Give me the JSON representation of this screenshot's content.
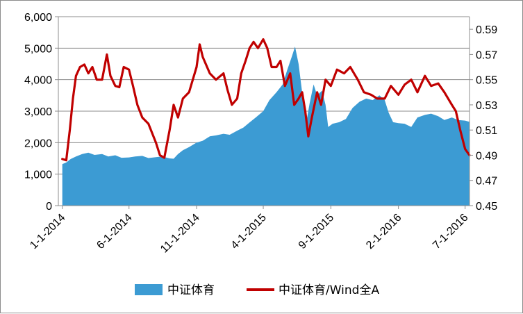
{
  "chart_data": {
    "type": "area",
    "title": "",
    "xlabel": "",
    "ylabel": "",
    "legend_placement": "bottom",
    "grid": {
      "horizontal": true,
      "vertical": false
    },
    "x_range": [
      "2013-12-23",
      "2016-07-11"
    ],
    "x_tick_labels": [
      "1-1-2014",
      "6-1-2014",
      "11-1-2014",
      "4-1-2015",
      "9-1-2015",
      "2-1-2016",
      "7-1-2016"
    ],
    "x_tick_dates": [
      "2014-01-01",
      "2014-06-01",
      "2014-11-01",
      "2015-04-01",
      "2015-09-01",
      "2016-02-01",
      "2016-07-01"
    ],
    "y_left": {
      "min": 0,
      "max": 6000,
      "step": 1000,
      "tick_labels": [
        "0",
        "1,000",
        "2,000",
        "3,000",
        "4,000",
        "5,000",
        "6,000"
      ]
    },
    "y_right": {
      "min": 0.45,
      "max": 0.6,
      "step": 0.02,
      "tick_labels": [
        "0.45",
        "0.47",
        "0.49",
        "0.51",
        "0.53",
        "0.55",
        "0.57",
        "0.59"
      ]
    },
    "series": [
      {
        "name": "中证体育",
        "type": "area",
        "axis": "left",
        "color": "#3c9bd3",
        "points": [
          [
            "2014-01-01",
            1320
          ],
          [
            "2014-01-10",
            1370
          ],
          [
            "2014-01-20",
            1480
          ],
          [
            "2014-02-01",
            1560
          ],
          [
            "2014-02-15",
            1640
          ],
          [
            "2014-03-01",
            1680
          ],
          [
            "2014-03-15",
            1610
          ],
          [
            "2014-04-01",
            1640
          ],
          [
            "2014-04-15",
            1560
          ],
          [
            "2014-05-01",
            1600
          ],
          [
            "2014-05-15",
            1520
          ],
          [
            "2014-06-01",
            1530
          ],
          [
            "2014-06-15",
            1560
          ],
          [
            "2014-07-01",
            1580
          ],
          [
            "2014-07-15",
            1510
          ],
          [
            "2014-08-01",
            1540
          ],
          [
            "2014-08-15",
            1560
          ],
          [
            "2014-09-01",
            1500
          ],
          [
            "2014-09-10",
            1490
          ],
          [
            "2014-09-20",
            1640
          ],
          [
            "2014-10-01",
            1760
          ],
          [
            "2014-10-15",
            1860
          ],
          [
            "2014-11-01",
            2000
          ],
          [
            "2014-11-15",
            2060
          ],
          [
            "2014-12-01",
            2200
          ],
          [
            "2014-12-15",
            2230
          ],
          [
            "2015-01-01",
            2280
          ],
          [
            "2015-01-15",
            2250
          ],
          [
            "2015-02-01",
            2380
          ],
          [
            "2015-02-15",
            2480
          ],
          [
            "2015-03-01",
            2640
          ],
          [
            "2015-03-15",
            2800
          ],
          [
            "2015-04-01",
            3000
          ],
          [
            "2015-04-15",
            3350
          ],
          [
            "2015-05-01",
            3600
          ],
          [
            "2015-05-15",
            3850
          ],
          [
            "2015-05-25",
            4300
          ],
          [
            "2015-06-05",
            4750
          ],
          [
            "2015-06-12",
            5050
          ],
          [
            "2015-06-20",
            4500
          ],
          [
            "2015-06-28",
            3600
          ],
          [
            "2015-07-08",
            2700
          ],
          [
            "2015-07-15",
            3250
          ],
          [
            "2015-07-24",
            3850
          ],
          [
            "2015-08-01",
            3500
          ],
          [
            "2015-08-12",
            3650
          ],
          [
            "2015-08-20",
            3200
          ],
          [
            "2015-08-26",
            2500
          ],
          [
            "2015-09-05",
            2600
          ],
          [
            "2015-09-20",
            2650
          ],
          [
            "2015-10-05",
            2750
          ],
          [
            "2015-10-20",
            3100
          ],
          [
            "2015-11-05",
            3300
          ],
          [
            "2015-11-20",
            3400
          ],
          [
            "2015-12-05",
            3350
          ],
          [
            "2015-12-20",
            3500
          ],
          [
            "2016-01-01",
            3350
          ],
          [
            "2016-01-10",
            2950
          ],
          [
            "2016-01-20",
            2650
          ],
          [
            "2016-02-01",
            2620
          ],
          [
            "2016-02-15",
            2600
          ],
          [
            "2016-03-01",
            2500
          ],
          [
            "2016-03-15",
            2800
          ],
          [
            "2016-04-01",
            2880
          ],
          [
            "2016-04-15",
            2920
          ],
          [
            "2016-05-01",
            2840
          ],
          [
            "2016-05-15",
            2720
          ],
          [
            "2016-06-01",
            2800
          ],
          [
            "2016-06-15",
            2720
          ],
          [
            "2016-07-01",
            2700
          ],
          [
            "2016-07-11",
            2660
          ]
        ]
      },
      {
        "name": "中证体育/Wind全A",
        "type": "line",
        "axis": "right",
        "color": "#c00000",
        "points": [
          [
            "2014-01-01",
            0.487
          ],
          [
            "2014-01-10",
            0.486
          ],
          [
            "2014-01-18",
            0.51
          ],
          [
            "2014-01-25",
            0.535
          ],
          [
            "2014-02-01",
            0.553
          ],
          [
            "2014-02-10",
            0.56
          ],
          [
            "2014-02-20",
            0.562
          ],
          [
            "2014-03-01",
            0.555
          ],
          [
            "2014-03-10",
            0.56
          ],
          [
            "2014-03-20",
            0.55
          ],
          [
            "2014-04-01",
            0.55
          ],
          [
            "2014-04-12",
            0.57
          ],
          [
            "2014-04-20",
            0.553
          ],
          [
            "2014-05-01",
            0.545
          ],
          [
            "2014-05-10",
            0.544
          ],
          [
            "2014-05-20",
            0.56
          ],
          [
            "2014-06-01",
            0.558
          ],
          [
            "2014-06-10",
            0.545
          ],
          [
            "2014-06-20",
            0.53
          ],
          [
            "2014-07-01",
            0.52
          ],
          [
            "2014-07-15",
            0.515
          ],
          [
            "2014-08-01",
            0.5
          ],
          [
            "2014-08-10",
            0.49
          ],
          [
            "2014-08-20",
            0.488
          ],
          [
            "2014-09-01",
            0.51
          ],
          [
            "2014-09-10",
            0.53
          ],
          [
            "2014-09-20",
            0.52
          ],
          [
            "2014-10-01",
            0.535
          ],
          [
            "2014-10-15",
            0.54
          ],
          [
            "2014-11-01",
            0.56
          ],
          [
            "2014-11-08",
            0.578
          ],
          [
            "2014-11-15",
            0.568
          ],
          [
            "2014-12-01",
            0.555
          ],
          [
            "2014-12-15",
            0.55
          ],
          [
            "2015-01-01",
            0.555
          ],
          [
            "2015-01-10",
            0.542
          ],
          [
            "2015-01-20",
            0.53
          ],
          [
            "2015-02-01",
            0.535
          ],
          [
            "2015-02-10",
            0.555
          ],
          [
            "2015-02-20",
            0.565
          ],
          [
            "2015-03-01",
            0.575
          ],
          [
            "2015-03-10",
            0.58
          ],
          [
            "2015-03-20",
            0.575
          ],
          [
            "2015-04-01",
            0.582
          ],
          [
            "2015-04-10",
            0.575
          ],
          [
            "2015-04-20",
            0.56
          ],
          [
            "2015-05-01",
            0.56
          ],
          [
            "2015-05-10",
            0.565
          ],
          [
            "2015-05-20",
            0.545
          ],
          [
            "2015-06-01",
            0.555
          ],
          [
            "2015-06-10",
            0.53
          ],
          [
            "2015-06-20",
            0.535
          ],
          [
            "2015-06-28",
            0.54
          ],
          [
            "2015-07-05",
            0.525
          ],
          [
            "2015-07-12",
            0.505
          ],
          [
            "2015-07-20",
            0.52
          ],
          [
            "2015-08-01",
            0.54
          ],
          [
            "2015-08-10",
            0.53
          ],
          [
            "2015-08-20",
            0.55
          ],
          [
            "2015-09-01",
            0.545
          ],
          [
            "2015-09-15",
            0.558
          ],
          [
            "2015-10-01",
            0.555
          ],
          [
            "2015-10-15",
            0.56
          ],
          [
            "2015-11-01",
            0.55
          ],
          [
            "2015-11-15",
            0.54
          ],
          [
            "2015-12-01",
            0.538
          ],
          [
            "2015-12-15",
            0.535
          ],
          [
            "2016-01-01",
            0.535
          ],
          [
            "2016-01-15",
            0.545
          ],
          [
            "2016-02-01",
            0.538
          ],
          [
            "2016-02-15",
            0.546
          ],
          [
            "2016-03-01",
            0.55
          ],
          [
            "2016-03-15",
            0.54
          ],
          [
            "2016-04-01",
            0.553
          ],
          [
            "2016-04-15",
            0.545
          ],
          [
            "2016-05-01",
            0.547
          ],
          [
            "2016-05-15",
            0.54
          ],
          [
            "2016-06-01",
            0.53
          ],
          [
            "2016-06-10",
            0.525
          ],
          [
            "2016-06-20",
            0.51
          ],
          [
            "2016-07-01",
            0.495
          ],
          [
            "2016-07-11",
            0.49
          ]
        ]
      }
    ]
  }
}
